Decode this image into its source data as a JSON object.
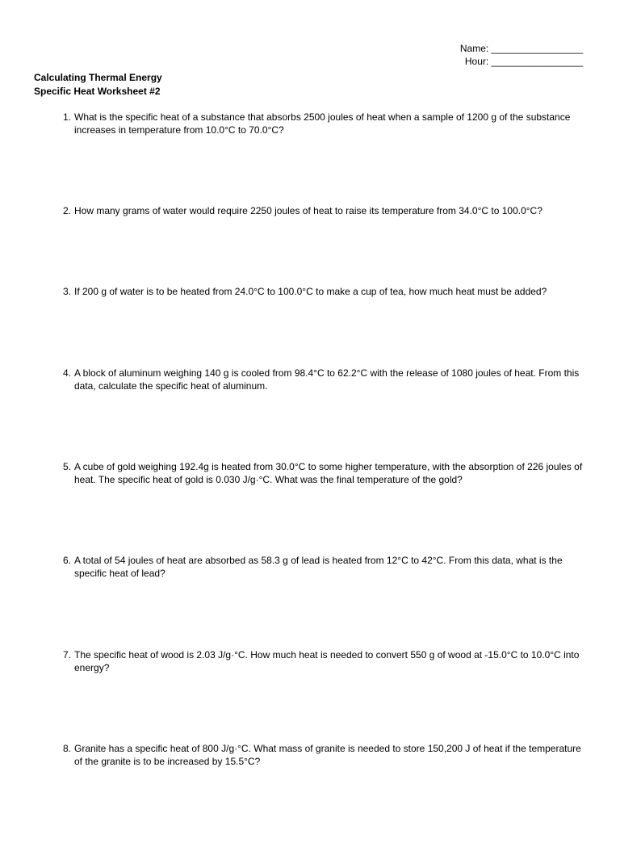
{
  "header": {
    "name_label": "Name: _________________",
    "hour_label": "Hour: _________________"
  },
  "title": {
    "line1": "Calculating Thermal Energy",
    "line2": "Specific Heat Worksheet #2"
  },
  "questions": [
    {
      "num": "1.",
      "text": "What is the specific heat of a substance that absorbs 2500 joules of heat when a sample of 1200 g of the substance increases in temperature from 10.0°C to 70.0°C?"
    },
    {
      "num": "2.",
      "text": "How many grams of water would require 2250 joules of heat to raise its temperature from 34.0°C to 100.0°C?"
    },
    {
      "num": "3.",
      "text": "If 200 g of water is to be heated from 24.0°C to 100.0°C to make a cup of tea, how much heat must be added?"
    },
    {
      "num": "4.",
      "text": "A block of aluminum weighing 140 g is cooled from 98.4°C to 62.2°C with the release of 1080 joules of heat.  From this data, calculate the specific heat of aluminum."
    },
    {
      "num": "5.",
      "text": "A cube of gold weighing 192.4g is heated from 30.0°C to some higher temperature, with the absorption of 226 joules of heat.  The specific heat of gold is 0.030 J/g·°C.  What was the final temperature of the gold?"
    },
    {
      "num": "6.",
      "text": "A total of 54 joules of heat are absorbed as 58.3 g of lead is heated from 12°C to 42°C.  From this data, what is the specific heat of lead?"
    },
    {
      "num": "7.",
      "text": "The specific heat of wood is 2.03 J/g·°C.  How much heat is needed to convert 550 g of wood at -15.0°C to 10.0°C into energy?"
    },
    {
      "num": "8.",
      "text": "Granite has a specific heat of 800 J/g·°C.  What mass of granite is needed to store 150,200 J of heat if the temperature of the granite is to be increased by 15.5°C?"
    }
  ]
}
